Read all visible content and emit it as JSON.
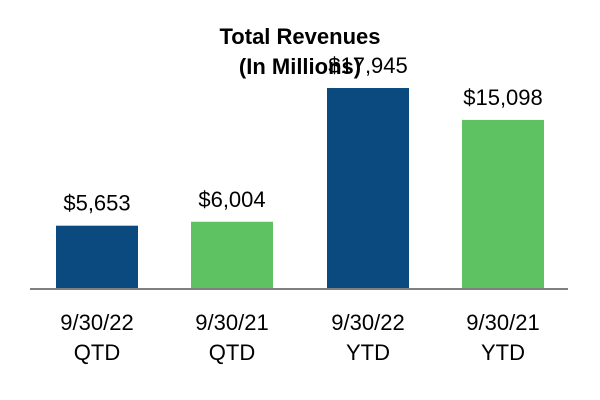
{
  "chart_data": {
    "type": "bar",
    "title": [
      "Total Revenues",
      "(In Millions)"
    ],
    "categories": [
      [
        "9/30/22",
        "QTD"
      ],
      [
        "9/30/21",
        "QTD"
      ],
      [
        "9/30/22",
        "YTD"
      ],
      [
        "9/30/21",
        "YTD"
      ]
    ],
    "values": [
      5653,
      6004,
      17945,
      15098
    ],
    "value_labels": [
      "$5,653",
      "$6,004",
      "$17,945",
      "$15,098"
    ],
    "bar_colors": [
      "#0b4a7e",
      "#5ec262",
      "#0b4a7e",
      "#5ec262"
    ],
    "axis_color": "#7f7f7f",
    "ylim": [
      0,
      20000
    ],
    "grid": false,
    "legend": "none",
    "xlabel": "",
    "ylabel": ""
  }
}
